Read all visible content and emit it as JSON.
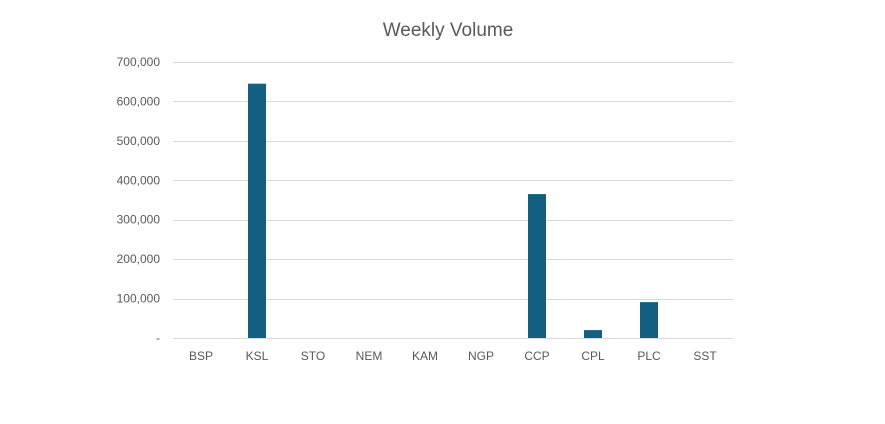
{
  "chart_data": {
    "type": "bar",
    "title": "Weekly Volume",
    "xlabel": "",
    "ylabel": "",
    "categories": [
      "BSP",
      "KSL",
      "STO",
      "NEM",
      "KAM",
      "NGP",
      "CCP",
      "CPL",
      "PLC",
      "SST"
    ],
    "series": [
      {
        "values": [
          0,
          645000,
          0,
          0,
          0,
          0,
          365000,
          20000,
          91000,
          0
        ],
        "color": "#135f82"
      }
    ],
    "ylim": [
      0,
      700000
    ],
    "yticks": [
      0,
      100000,
      200000,
      300000,
      400000,
      500000,
      600000,
      700000
    ],
    "ytick_labels": [
      "-",
      "100,000",
      "200,000",
      "300,000",
      "400,000",
      "500,000",
      "600,000",
      "700,000"
    ],
    "grid": true,
    "legend": "none"
  }
}
